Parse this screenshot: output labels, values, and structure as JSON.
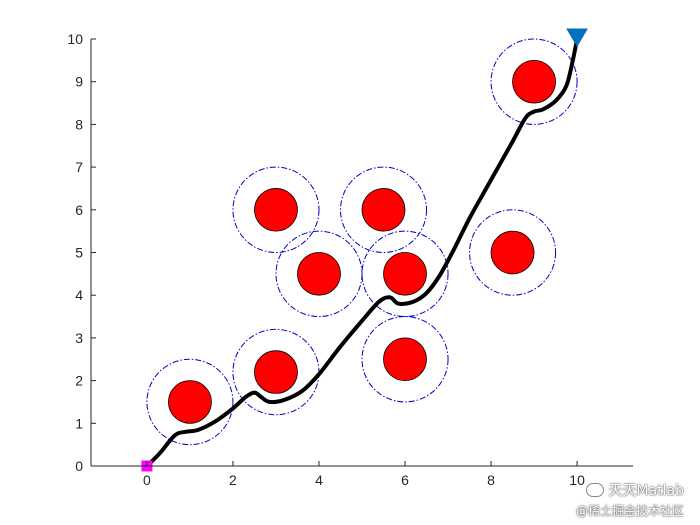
{
  "chart_data": {
    "type": "scatter",
    "title": "",
    "xlabel": "",
    "ylabel": "",
    "xlim": [
      -1.3,
      11.3
    ],
    "ylim": [
      0,
      10
    ],
    "xticks": [
      0,
      2,
      4,
      6,
      8,
      10
    ],
    "yticks": [
      0,
      1,
      2,
      3,
      4,
      5,
      6,
      7,
      8,
      9,
      10
    ],
    "grid": false,
    "start": {
      "x": 0,
      "y": 0,
      "marker": "square",
      "color": "#ff00ff"
    },
    "goal": {
      "x": 10,
      "y": 10,
      "marker": "triangle-down",
      "color": "#0072bd"
    },
    "obstacles": [
      {
        "x": 1,
        "y": 1.5,
        "r": 0.5,
        "safety_r": 1.0
      },
      {
        "x": 3,
        "y": 2.2,
        "r": 0.5,
        "safety_r": 1.0
      },
      {
        "x": 3,
        "y": 6,
        "r": 0.5,
        "safety_r": 1.0
      },
      {
        "x": 4,
        "y": 4.5,
        "r": 0.5,
        "safety_r": 1.0
      },
      {
        "x": 5.5,
        "y": 6,
        "r": 0.5,
        "safety_r": 1.0
      },
      {
        "x": 6,
        "y": 4.5,
        "r": 0.5,
        "safety_r": 1.0
      },
      {
        "x": 6,
        "y": 2.5,
        "r": 0.5,
        "safety_r": 1.0
      },
      {
        "x": 8.5,
        "y": 5,
        "r": 0.5,
        "safety_r": 1.0
      },
      {
        "x": 9,
        "y": 9,
        "r": 0.5,
        "safety_r": 1.0
      }
    ],
    "path": {
      "x": [
        0,
        0.3,
        0.65,
        0.9,
        1.2,
        1.6,
        2.0,
        2.3,
        2.5,
        2.65,
        2.85,
        3.2,
        3.6,
        4.0,
        4.5,
        5.0,
        5.4,
        5.65,
        5.85,
        6.2,
        6.5,
        6.8,
        7.1,
        7.5,
        8.0,
        8.5,
        8.8,
        9.0,
        9.2,
        9.5,
        9.75,
        9.9,
        10.0
      ],
      "y": [
        0,
        0.3,
        0.72,
        0.8,
        0.85,
        1.05,
        1.35,
        1.62,
        1.72,
        1.62,
        1.5,
        1.55,
        1.75,
        2.15,
        2.8,
        3.4,
        3.85,
        3.95,
        3.8,
        3.85,
        4.05,
        4.45,
        5.0,
        5.8,
        6.7,
        7.6,
        8.15,
        8.3,
        8.35,
        8.55,
        8.9,
        9.5,
        10.0
      ],
      "color": "#000000"
    },
    "colors": {
      "obstacle_fill": "#ff0000",
      "obstacle_edge": "#000000",
      "safety_ring": "#0000cc",
      "axis": "#262626"
    }
  },
  "watermark": {
    "line1": "天天Matlab",
    "line2": "@稀土掘金技术社区"
  }
}
